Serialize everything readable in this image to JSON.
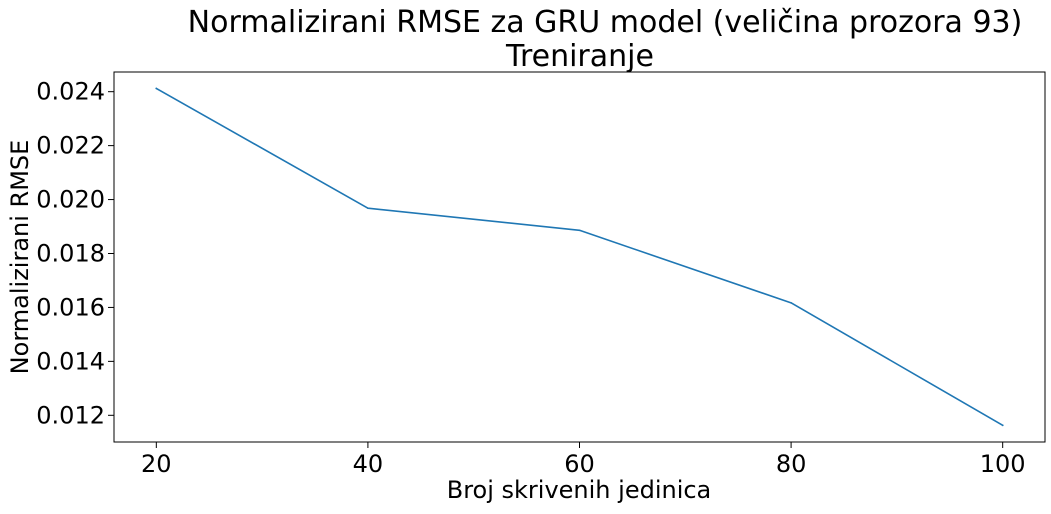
{
  "chart_data": {
    "type": "line",
    "title": "Normalizirani RMSE za GRU model (veličina prozora 93)",
    "subtitle": "Treniranje",
    "xlabel": "Broj skrivenih jedinica",
    "ylabel": "Normalizirani RMSE",
    "x": [
      20,
      40,
      60,
      80,
      100
    ],
    "series": [
      {
        "name": "",
        "values": [
          0.02412,
          0.01968,
          0.01886,
          0.01617,
          0.01163
        ],
        "color": "#1f77b4"
      }
    ],
    "xticks": [
      20,
      40,
      60,
      80,
      100
    ],
    "xtick_labels": [
      "20",
      "40",
      "60",
      "80",
      "100"
    ],
    "yticks": [
      0.012,
      0.014,
      0.016,
      0.018,
      0.02,
      0.022,
      0.024
    ],
    "ytick_labels": [
      "0.012",
      "0.014",
      "0.016",
      "0.018",
      "0.020",
      "0.022",
      "0.024"
    ],
    "xlim": [
      16,
      104
    ],
    "ylim": [
      0.01101,
      0.02473
    ],
    "grid": false,
    "legend": "none"
  }
}
